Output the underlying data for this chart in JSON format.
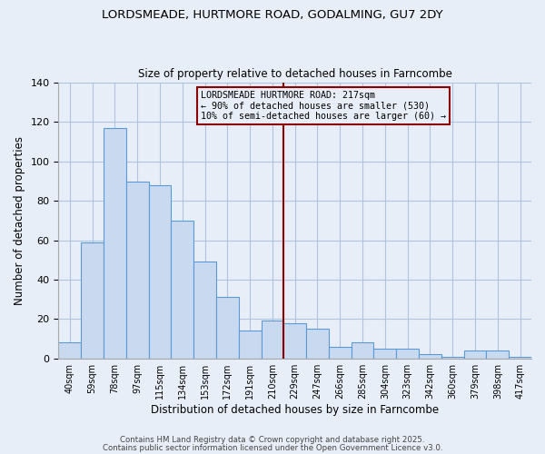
{
  "title1": "LORDSMEADE, HURTMORE ROAD, GODALMING, GU7 2DY",
  "title2": "Size of property relative to detached houses in Farncombe",
  "xlabel": "Distribution of detached houses by size in Farncombe",
  "ylabel": "Number of detached properties",
  "categories": [
    "40sqm",
    "59sqm",
    "78sqm",
    "97sqm",
    "115sqm",
    "134sqm",
    "153sqm",
    "172sqm",
    "191sqm",
    "210sqm",
    "229sqm",
    "247sqm",
    "266sqm",
    "285sqm",
    "304sqm",
    "323sqm",
    "342sqm",
    "360sqm",
    "379sqm",
    "398sqm",
    "417sqm"
  ],
  "values": [
    8,
    59,
    117,
    90,
    88,
    70,
    49,
    31,
    14,
    19,
    18,
    15,
    6,
    8,
    5,
    5,
    2,
    1,
    4,
    4,
    1
  ],
  "bar_color": "#c9d9f0",
  "bar_edge_color": "#5b9bd5",
  "vline_color": "#8b0000",
  "vline_pos": 9.5,
  "annotation_line1": "LORDSMEADE HURTMORE ROAD: 217sqm",
  "annotation_line2": "← 90% of detached houses are smaller (530)",
  "annotation_line3": "10% of semi-detached houses are larger (60) →",
  "annotation_box_color": "#8b0000",
  "ylim": [
    0,
    140
  ],
  "yticks": [
    0,
    20,
    40,
    60,
    80,
    100,
    120,
    140
  ],
  "grid_color": "#b0c4de",
  "bg_color": "#e8eef8",
  "footer1": "Contains HM Land Registry data © Crown copyright and database right 2025.",
  "footer2": "Contains public sector information licensed under the Open Government Licence v3.0."
}
